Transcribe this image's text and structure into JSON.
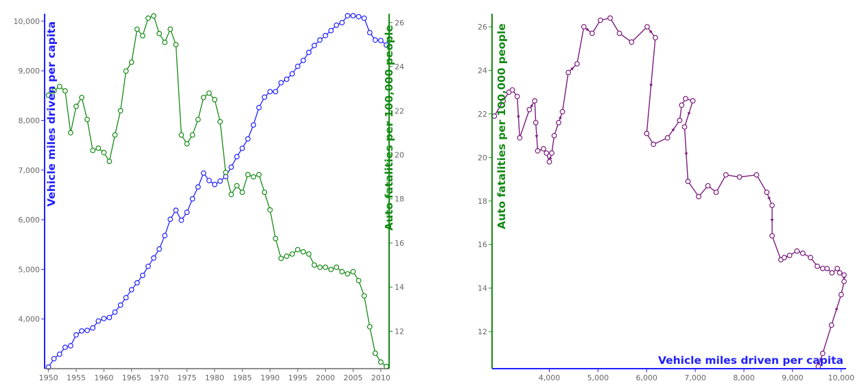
{
  "colors": {
    "miles": "#1f1fff",
    "fatalities": "#138a13",
    "connected": "#7a1a7d",
    "tick_text": "#666666",
    "axis_gray": "#666666"
  },
  "left_panel": {
    "ylabel_left": "Vehicle miles driven per capita",
    "ylabel_right": "Auto fatalities per 100,000 people"
  },
  "right_panel": {
    "xlabel": "Vehicle miles driven per capita",
    "ylabel": "Auto fatalities per 100,000 people"
  },
  "chart_data": [
    {
      "type": "line",
      "title": "",
      "x_axis": {
        "label": "",
        "range": [
          1949.3,
          2011.5
        ],
        "ticks": [
          1950,
          1955,
          1960,
          1965,
          1970,
          1975,
          1980,
          1985,
          1990,
          1995,
          2000,
          2005,
          2010
        ],
        "tick_labels": [
          "1950",
          "1955",
          "1960",
          "1965",
          "1970",
          "1975",
          "1980",
          "1985",
          "1990",
          "1995",
          "2000",
          "2005",
          "2010"
        ]
      },
      "y_axis_left": {
        "label": "Vehicle miles driven per capita",
        "range": [
          3000,
          10150
        ],
        "ticks": [
          4000,
          5000,
          6000,
          7000,
          8000,
          9000,
          10000
        ],
        "tick_labels": [
          "4,000",
          "5,000",
          "6,000",
          "7,000",
          "8,000",
          "9,000",
          "10,000"
        ]
      },
      "y_axis_right": {
        "label": "Auto fatalities per 100,000 people",
        "range": [
          10.3,
          26.4
        ],
        "ticks": [
          12,
          14,
          16,
          18,
          20,
          22,
          24,
          26
        ],
        "tick_labels": [
          "12",
          "14",
          "16",
          "18",
          "20",
          "22",
          "24",
          "26"
        ]
      },
      "series": [
        {
          "name": "Vehicle miles driven per capita",
          "axis": "left",
          "color": "#1f1fff",
          "x": [
            1950,
            1951,
            1952,
            1953,
            1954,
            1955,
            1956,
            1957,
            1958,
            1959,
            1960,
            1961,
            1962,
            1963,
            1964,
            1965,
            1966,
            1967,
            1968,
            1969,
            1970,
            1971,
            1972,
            1973,
            1974,
            1975,
            1976,
            1977,
            1978,
            1979,
            1980,
            1981,
            1982,
            1983,
            1984,
            1985,
            1986,
            1987,
            1988,
            1989,
            1990,
            1991,
            1992,
            1993,
            1994,
            1995,
            1996,
            1997,
            1998,
            1999,
            2000,
            2001,
            2002,
            2003,
            2004,
            2005,
            2006,
            2007,
            2008,
            2009,
            2010,
            2011
          ],
          "values": [
            3030,
            3200,
            3290,
            3430,
            3460,
            3680,
            3760,
            3770,
            3820,
            3960,
            4010,
            4030,
            4140,
            4280,
            4430,
            4590,
            4730,
            4880,
            5060,
            5230,
            5410,
            5680,
            6010,
            6190,
            5990,
            6150,
            6420,
            6660,
            6940,
            6790,
            6710,
            6780,
            6870,
            7060,
            7270,
            7440,
            7630,
            7910,
            8260,
            8470,
            8580,
            8580,
            8760,
            8830,
            8940,
            9090,
            9210,
            9370,
            9510,
            9620,
            9710,
            9810,
            9920,
            9970,
            10110,
            10110,
            10090,
            10060,
            9770,
            9620,
            9610,
            9520
          ]
        },
        {
          "name": "Auto fatalities per 100,000 people",
          "axis": "right",
          "color": "#138a13",
          "x": [
            1950,
            1951,
            1952,
            1953,
            1954,
            1955,
            1956,
            1957,
            1958,
            1959,
            1960,
            1961,
            1962,
            1963,
            1964,
            1965,
            1966,
            1967,
            1968,
            1969,
            1970,
            1971,
            1972,
            1973,
            1974,
            1975,
            1976,
            1977,
            1978,
            1979,
            1980,
            1981,
            1982,
            1983,
            1984,
            1985,
            1986,
            1987,
            1988,
            1989,
            1990,
            1991,
            1992,
            1993,
            1994,
            1995,
            1996,
            1997,
            1998,
            1999,
            2000,
            2001,
            2002,
            2003,
            2004,
            2005,
            2006,
            2007,
            2008,
            2009,
            2010,
            2011
          ],
          "values": [
            22.7,
            22.9,
            23.1,
            22.9,
            21.0,
            22.2,
            22.6,
            21.6,
            20.2,
            20.3,
            20.1,
            19.7,
            20.9,
            22.0,
            23.8,
            24.2,
            25.7,
            25.4,
            26.2,
            26.3,
            25.5,
            25.1,
            25.7,
            25.0,
            20.9,
            20.5,
            20.9,
            21.6,
            22.6,
            22.8,
            22.5,
            21.5,
            19.2,
            18.2,
            18.6,
            18.3,
            19.1,
            19.0,
            19.1,
            18.3,
            17.5,
            16.2,
            15.3,
            15.4,
            15.5,
            15.7,
            15.6,
            15.5,
            15.0,
            14.9,
            14.9,
            14.8,
            14.9,
            14.7,
            14.6,
            14.7,
            14.3,
            13.6,
            12.2,
            11.0,
            10.6,
            10.4
          ]
        }
      ]
    },
    {
      "type": "scatter",
      "subtype": "connected scatter",
      "title": "",
      "x_axis": {
        "label": "Vehicle miles driven per capita",
        "range": [
          2850,
          10060
        ],
        "ticks": [
          4000,
          5000,
          6000,
          7000,
          8000,
          9000,
          10000
        ],
        "tick_labels": [
          "4,000",
          "5,000",
          "6,000",
          "7,000",
          "8,000",
          "9,000",
          "10,000"
        ]
      },
      "y_axis": {
        "label": "Auto fatalities per 100,000 people",
        "range": [
          10.3,
          26.6
        ],
        "ticks": [
          12,
          14,
          16,
          18,
          20,
          22,
          24,
          26
        ],
        "tick_labels": [
          "12",
          "14",
          "16",
          "18",
          "20",
          "22",
          "24",
          "26"
        ]
      },
      "color": "#7a1a7d",
      "points": [
        [
          2870,
          21.9
        ],
        [
          3050,
          22.6
        ],
        [
          3170,
          23.0
        ],
        [
          3240,
          23.1
        ],
        [
          3340,
          22.8
        ],
        [
          3390,
          20.9
        ],
        [
          3590,
          22.2
        ],
        [
          3700,
          22.6
        ],
        [
          3720,
          21.6
        ],
        [
          3760,
          20.3
        ],
        [
          3880,
          20.4
        ],
        [
          3940,
          20.2
        ],
        [
          4000,
          19.8
        ],
        [
          4050,
          20.2
        ],
        [
          4100,
          21.0
        ],
        [
          4190,
          21.6
        ],
        [
          4270,
          22.1
        ],
        [
          4390,
          23.9
        ],
        [
          4570,
          24.3
        ],
        [
          4710,
          26.0
        ],
        [
          4880,
          25.7
        ],
        [
          5050,
          26.3
        ],
        [
          5250,
          26.4
        ],
        [
          5440,
          25.7
        ],
        [
          5690,
          25.3
        ],
        [
          6010,
          26.0
        ],
        [
          6180,
          25.5
        ],
        [
          6000,
          21.1
        ],
        [
          6140,
          20.6
        ],
        [
          6430,
          20.9
        ],
        [
          6680,
          21.7
        ],
        [
          6720,
          22.4
        ],
        [
          6800,
          22.7
        ],
        [
          6950,
          22.6
        ],
        [
          6780,
          21.4
        ],
        [
          6850,
          18.9
        ],
        [
          7070,
          18.2
        ],
        [
          7260,
          18.7
        ],
        [
          7430,
          18.4
        ],
        [
          7630,
          19.2
        ],
        [
          7910,
          19.1
        ],
        [
          8260,
          19.2
        ],
        [
          8470,
          18.4
        ],
        [
          8580,
          17.8
        ],
        [
          8580,
          16.4
        ],
        [
          8760,
          15.3
        ],
        [
          8830,
          15.4
        ],
        [
          8940,
          15.5
        ],
        [
          9090,
          15.7
        ],
        [
          9210,
          15.6
        ],
        [
          9370,
          15.4
        ],
        [
          9510,
          15.0
        ],
        [
          9620,
          14.9
        ],
        [
          9710,
          14.9
        ],
        [
          9810,
          14.7
        ],
        [
          9920,
          14.9
        ],
        [
          9970,
          14.7
        ],
        [
          10060,
          14.6
        ],
        [
          10060,
          14.3
        ],
        [
          10000,
          13.7
        ],
        [
          9800,
          12.3
        ],
        [
          9620,
          11.0
        ],
        [
          9530,
          10.4
        ]
      ],
      "arrow_after_point_indices": [
        4,
        6,
        8,
        12,
        15,
        17,
        19,
        25,
        26,
        29,
        33,
        34,
        42,
        43,
        46,
        57,
        59,
        61
      ]
    }
  ]
}
